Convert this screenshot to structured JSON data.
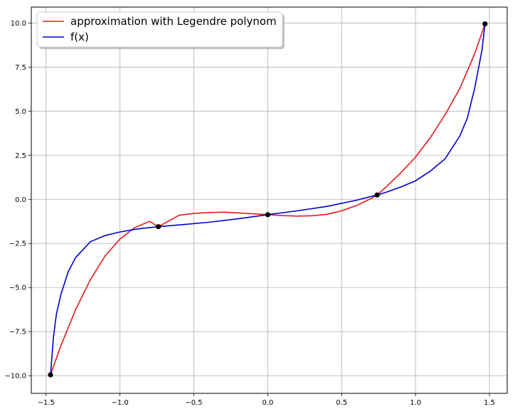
{
  "chart_data": {
    "type": "line",
    "title": "",
    "xlabel": "",
    "ylabel": "",
    "xlim": [
      -1.6,
      1.62
    ],
    "ylim": [
      -11.0,
      10.9
    ],
    "grid": true,
    "legend_position": "top-left",
    "xticks": [
      -1.5,
      -1.0,
      -0.5,
      0.0,
      0.5,
      1.0,
      1.5
    ],
    "xtick_labels": [
      "−1.5",
      "−1.0",
      "−0.5",
      "0.0",
      "0.5",
      "1.0",
      "1.5"
    ],
    "yticks": [
      -10.0,
      -7.5,
      -5.0,
      -2.5,
      0.0,
      2.5,
      5.0,
      7.5,
      10.0
    ],
    "ytick_labels": [
      "−10.0",
      "−7.5",
      "−5.0",
      "−2.5",
      "0.0",
      "2.5",
      "5.0",
      "7.5",
      "10.0"
    ],
    "series": [
      {
        "name": "approximation with Legendre polynom",
        "color": "#e41a1c",
        "x": [
          -1.47,
          -1.4,
          -1.3,
          -1.2,
          -1.1,
          -1.0,
          -0.9,
          -0.8,
          -0.74,
          -0.6,
          -0.5,
          -0.4,
          -0.3,
          -0.2,
          -0.1,
          0.0,
          0.1,
          0.2,
          0.3,
          0.4,
          0.5,
          0.6,
          0.7,
          0.74,
          0.8,
          0.9,
          1.0,
          1.1,
          1.2,
          1.3,
          1.4,
          1.47
        ],
        "y": [
          -9.95,
          -8.3,
          -6.25,
          -4.55,
          -3.2,
          -2.25,
          -1.6,
          -1.25,
          -1.55,
          -0.9,
          -0.8,
          -0.75,
          -0.73,
          -0.77,
          -0.82,
          -0.87,
          -0.92,
          -0.95,
          -0.93,
          -0.85,
          -0.65,
          -0.35,
          0.05,
          0.25,
          0.7,
          1.5,
          2.4,
          3.5,
          4.8,
          6.3,
          8.25,
          9.95
        ]
      },
      {
        "name": "f(x)",
        "color": "#0000cc",
        "x": [
          -1.47,
          -1.45,
          -1.43,
          -1.4,
          -1.35,
          -1.3,
          -1.2,
          -1.1,
          -1.0,
          -0.9,
          -0.8,
          -0.74,
          -0.6,
          -0.4,
          -0.2,
          0.0,
          0.2,
          0.4,
          0.6,
          0.74,
          0.8,
          0.9,
          1.0,
          1.1,
          1.2,
          1.3,
          1.35,
          1.4,
          1.43,
          1.45,
          1.47
        ],
        "y": [
          -9.95,
          -7.8,
          -6.5,
          -5.4,
          -4.1,
          -3.3,
          -2.4,
          -2.05,
          -1.85,
          -1.7,
          -1.6,
          -1.55,
          -1.45,
          -1.3,
          -1.1,
          -0.87,
          -0.65,
          -0.4,
          -0.05,
          0.25,
          0.4,
          0.7,
          1.05,
          1.6,
          2.3,
          3.6,
          4.6,
          6.3,
          7.6,
          8.5,
          9.95
        ]
      }
    ],
    "points": {
      "color": "#000000",
      "x": [
        -1.47,
        -0.74,
        0.0,
        0.74,
        1.47
      ],
      "y": [
        -9.95,
        -1.55,
        -0.87,
        0.25,
        9.95
      ]
    }
  }
}
